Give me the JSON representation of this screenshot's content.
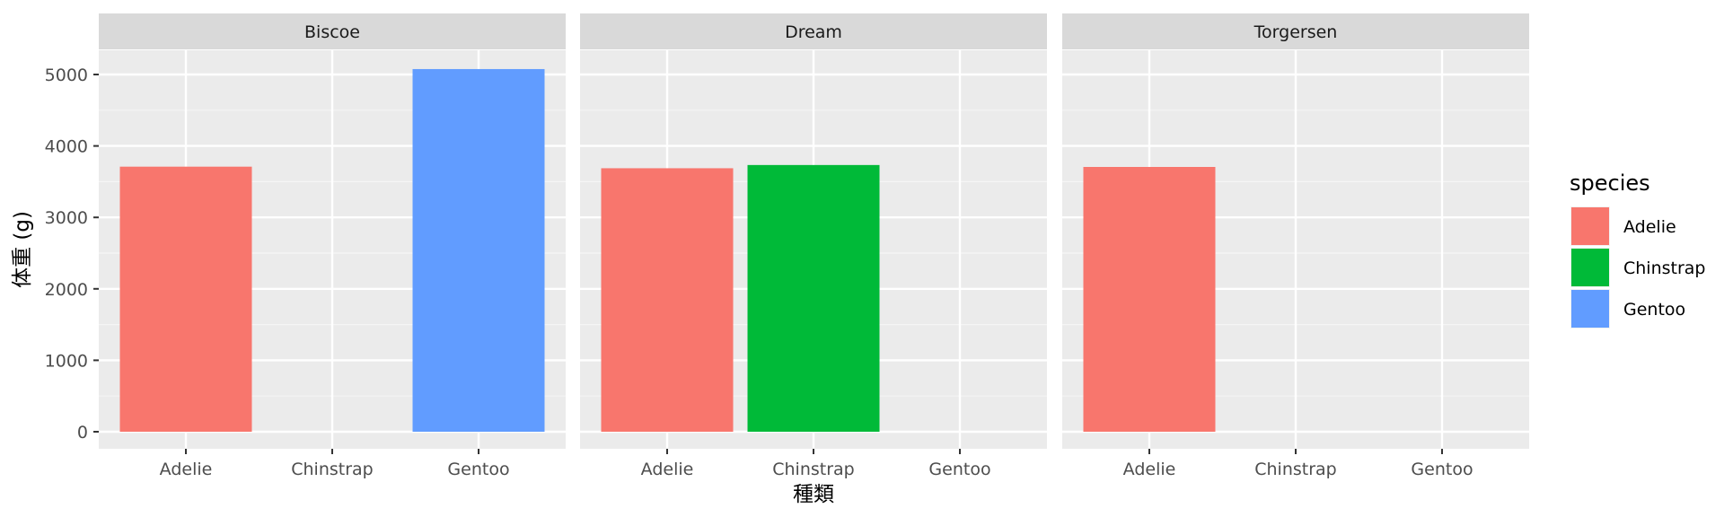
{
  "chart_data": {
    "type": "bar",
    "facets": [
      "Biscoe",
      "Dream",
      "Torgersen"
    ],
    "categories": [
      "Adelie",
      "Chinstrap",
      "Gentoo"
    ],
    "series": [
      {
        "name": "Adelie",
        "color": "#F8766D"
      },
      {
        "name": "Chinstrap",
        "color": "#00BA38"
      },
      {
        "name": "Gentoo",
        "color": "#619CFF"
      }
    ],
    "values": [
      {
        "facet": "Biscoe",
        "category": "Adelie",
        "value": 3710
      },
      {
        "facet": "Biscoe",
        "category": "Gentoo",
        "value": 5076
      },
      {
        "facet": "Dream",
        "category": "Adelie",
        "value": 3688
      },
      {
        "facet": "Dream",
        "category": "Chinstrap",
        "value": 3733
      },
      {
        "facet": "Torgersen",
        "category": "Adelie",
        "value": 3706
      }
    ],
    "xlabel": "種類",
    "ylabel": "体重 (g)",
    "ylim": [
      0,
      5000
    ],
    "yticks": [
      0,
      1000,
      2000,
      3000,
      4000,
      5000
    ],
    "legend_title": "species",
    "legend_position": "right",
    "grid": true
  }
}
